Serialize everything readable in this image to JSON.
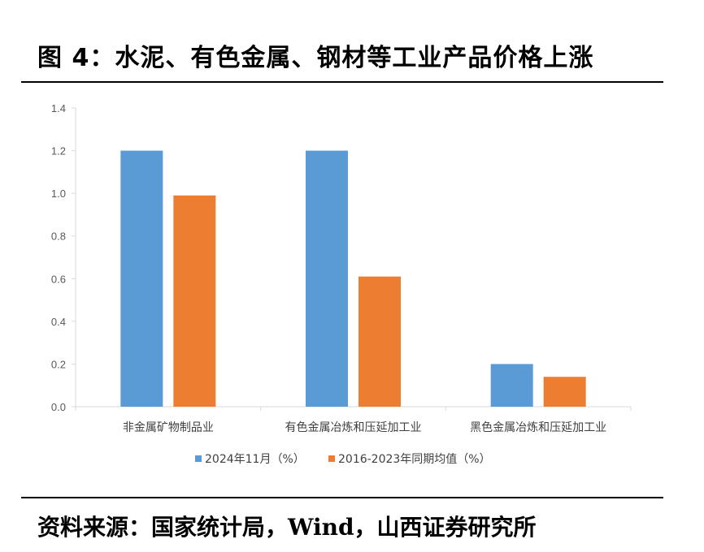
{
  "figure": {
    "title": "图 4：水泥、有色金属、钢材等工业产品价格上涨",
    "source": "资料来源：国家统计局，Wind，山西证券研究所"
  },
  "chart_data": {
    "type": "bar",
    "title": "",
    "xlabel": "",
    "ylabel": "",
    "categories": [
      "非金属矿物制品业",
      "有色金属冶炼和压延加工业",
      "黑色金属冶炼和压延加工业"
    ],
    "series": [
      {
        "name": "2024年11月（%）",
        "values": [
          1.2,
          1.2,
          0.2
        ],
        "color": "#5b9bd5"
      },
      {
        "name": "2016-2023年同期均值（%）",
        "values": [
          0.99,
          0.61,
          0.14
        ],
        "color": "#ed7d31"
      }
    ],
    "y_ticks": [
      "0.0",
      "0.2",
      "0.4",
      "0.6",
      "0.8",
      "1.0",
      "1.2",
      "1.4"
    ],
    "ylim": [
      0,
      1.4
    ],
    "grid": false,
    "legend_position": "bottom"
  }
}
